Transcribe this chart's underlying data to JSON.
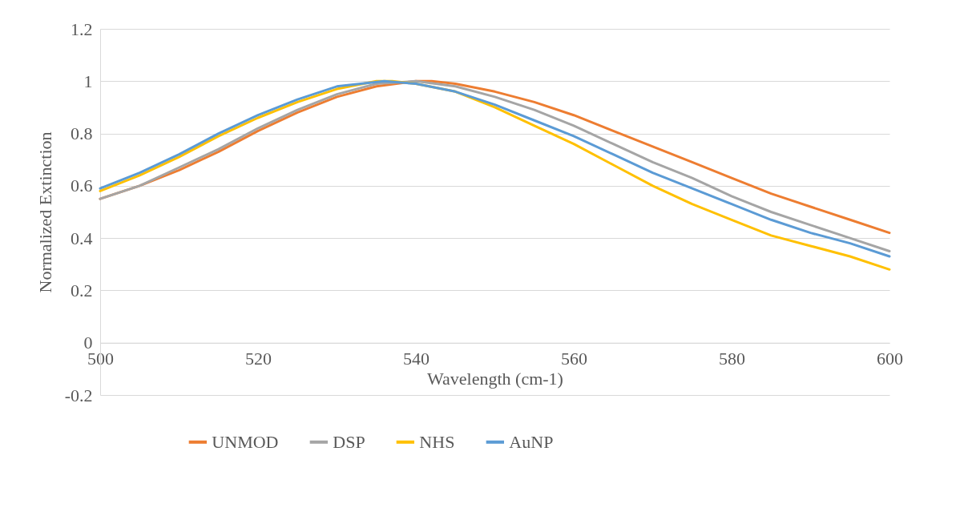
{
  "chart_data": {
    "type": "line",
    "xlabel": "Wavelength (cm-1)",
    "ylabel": "Normalized Extinction",
    "xlim": [
      500,
      600
    ],
    "xticks": [
      500,
      520,
      540,
      560,
      580,
      600
    ],
    "ylim": [
      -0.2,
      1.2
    ],
    "yticks": [
      {
        "value": -0.2,
        "label": "-0.2"
      },
      0,
      0.2,
      0.4,
      0.6,
      0.8,
      1,
      1.2
    ],
    "grid": "y",
    "legend": "bottom",
    "marker": "none",
    "line_style": "solid",
    "series": [
      {
        "name": "UNMOD",
        "color": "#ed7d31",
        "x": [
          500,
          505,
          510,
          515,
          520,
          525,
          530,
          535,
          540,
          542,
          545,
          550,
          555,
          560,
          565,
          570,
          575,
          580,
          585,
          590,
          595,
          600
        ],
        "values": [
          0.55,
          0.6,
          0.66,
          0.73,
          0.81,
          0.88,
          0.94,
          0.98,
          1.0,
          1.0,
          0.99,
          0.96,
          0.92,
          0.87,
          0.81,
          0.75,
          0.69,
          0.63,
          0.57,
          0.52,
          0.47,
          0.42
        ]
      },
      {
        "name": "DSP",
        "color": "#a5a5a5",
        "x": [
          500,
          505,
          510,
          515,
          520,
          525,
          530,
          535,
          540,
          545,
          550,
          555,
          560,
          565,
          570,
          575,
          580,
          585,
          590,
          595,
          600
        ],
        "values": [
          0.55,
          0.6,
          0.67,
          0.74,
          0.82,
          0.89,
          0.95,
          0.99,
          1.0,
          0.98,
          0.94,
          0.89,
          0.83,
          0.76,
          0.69,
          0.63,
          0.56,
          0.5,
          0.45,
          0.4,
          0.35
        ]
      },
      {
        "name": "NHS",
        "color": "#ffc000",
        "x": [
          500,
          505,
          510,
          515,
          520,
          525,
          530,
          535,
          537,
          540,
          545,
          550,
          555,
          560,
          565,
          570,
          575,
          580,
          585,
          590,
          595,
          600
        ],
        "values": [
          0.58,
          0.64,
          0.71,
          0.79,
          0.86,
          0.92,
          0.97,
          1.0,
          1.0,
          0.99,
          0.96,
          0.9,
          0.83,
          0.76,
          0.68,
          0.6,
          0.53,
          0.47,
          0.41,
          0.37,
          0.33,
          0.28
        ]
      },
      {
        "name": "AuNP",
        "color": "#5b9bd5",
        "x": [
          500,
          505,
          510,
          515,
          520,
          525,
          530,
          536,
          540,
          545,
          550,
          555,
          560,
          565,
          570,
          575,
          580,
          585,
          590,
          595,
          600
        ],
        "values": [
          0.59,
          0.65,
          0.72,
          0.8,
          0.87,
          0.93,
          0.98,
          1.0,
          0.99,
          0.96,
          0.91,
          0.85,
          0.79,
          0.72,
          0.65,
          0.59,
          0.53,
          0.47,
          0.42,
          0.38,
          0.33
        ]
      }
    ]
  }
}
